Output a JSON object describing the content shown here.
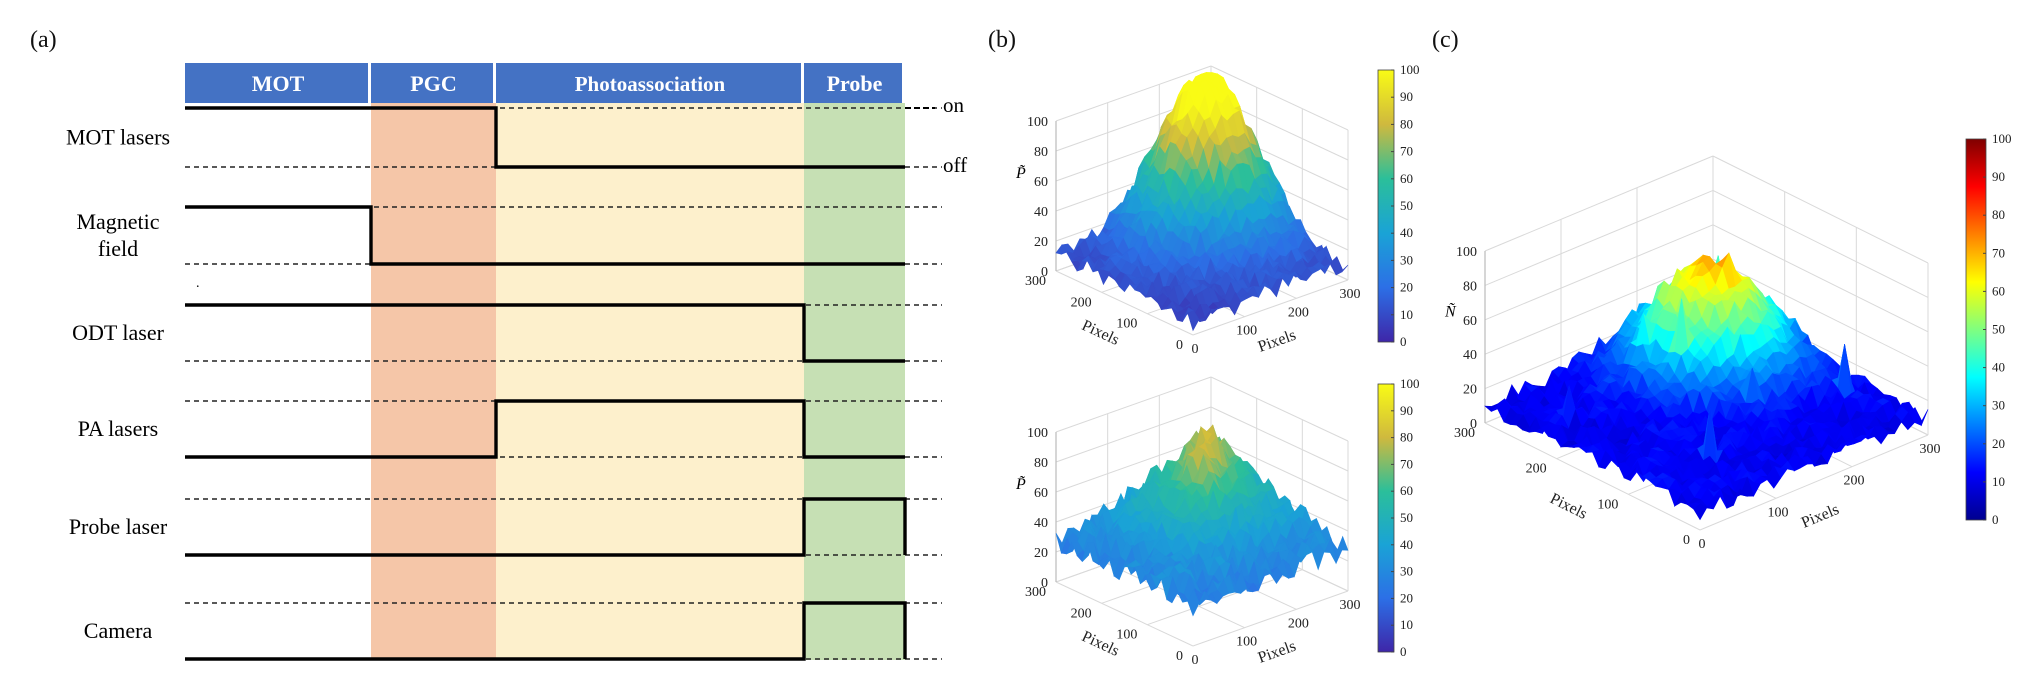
{
  "panel_a": {
    "label": "(a)",
    "phases": [
      {
        "name": "MOT",
        "color": "#ffffff"
      },
      {
        "name": "PGC",
        "color": "#f5c6a8"
      },
      {
        "name": "Photoassociation",
        "color": "#fdf0cc"
      },
      {
        "name": "Probe",
        "color": "#c6e0b4"
      }
    ],
    "header_color": "#4472c4",
    "on_label": "on",
    "off_label": "off",
    "channels": [
      {
        "name": "MOT lasers",
        "states": [
          "on",
          "on",
          "off",
          "off"
        ]
      },
      {
        "name": "Magnetic field",
        "lines": [
          "Magnetic",
          "field"
        ],
        "states": [
          "on",
          "off",
          "off",
          "off"
        ]
      },
      {
        "name": "ODT laser",
        "states": [
          "on",
          "on",
          "on",
          "off"
        ]
      },
      {
        "name": "PA lasers",
        "states": [
          "off",
          "off",
          "on",
          "off"
        ]
      },
      {
        "name": "Probe laser",
        "states": [
          "off",
          "off",
          "off",
          "on"
        ]
      },
      {
        "name": "Camera",
        "states": [
          "off",
          "off",
          "off",
          "on"
        ]
      }
    ]
  },
  "panel_b": {
    "label": "(b)",
    "plots": [
      {
        "zlabel": "P̃",
        "peak": "center",
        "max": 96
      },
      {
        "zlabel": "P̃",
        "peak": "ridge",
        "max": 88
      }
    ],
    "z_ticks": [
      "0",
      "20",
      "40",
      "60",
      "80",
      "100"
    ],
    "xy_ticks": [
      "0",
      "100",
      "200",
      "300"
    ],
    "axis_label": "Pixels",
    "colorbar_ticks": [
      "0",
      "10",
      "20",
      "30",
      "40",
      "50",
      "60",
      "70",
      "80",
      "90",
      "100"
    ],
    "colormap": "parula"
  },
  "panel_c": {
    "label": "(c)",
    "zlabel": "Ñ",
    "max": 90,
    "z_ticks": [
      "0",
      "20",
      "40",
      "60",
      "80",
      "100"
    ],
    "xy_ticks": [
      "0",
      "100",
      "200",
      "300"
    ],
    "axis_label": "Pixels",
    "colorbar_ticks": [
      "0",
      "10",
      "20",
      "30",
      "40",
      "50",
      "60",
      "70",
      "80",
      "90",
      "100"
    ],
    "colormap": "jet"
  }
}
